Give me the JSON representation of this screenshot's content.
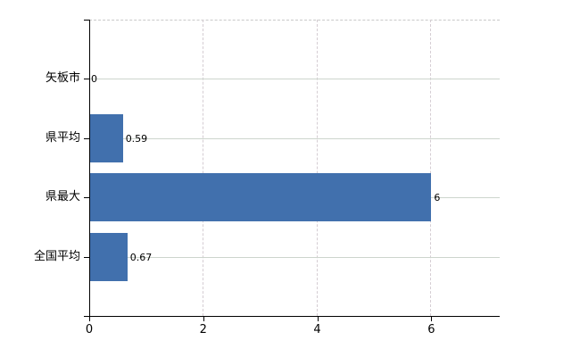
{
  "page": {
    "background": "#ffffff",
    "title": ""
  },
  "chart_data": {
    "type": "bar",
    "orientation": "horizontal",
    "title": "",
    "xlabel": "",
    "ylabel": "",
    "categories": [
      "矢板市",
      "県平均",
      "県最大",
      "全国平均"
    ],
    "values": [
      0,
      0.59,
      6,
      0.67
    ],
    "value_labels": [
      "0",
      "0.59",
      "6",
      "0.67"
    ],
    "x_tick_labels": [
      "0",
      "2",
      "4",
      "6"
    ],
    "x_tick_values": [
      0,
      2,
      4,
      6
    ],
    "xlim": [
      0,
      7.2
    ],
    "grid": true,
    "legend": false,
    "colors": {
      "bar": "#4170ad",
      "axis": "#000000",
      "h_gridline": "#cdd5cd",
      "v_gridline": "#d5cdd3",
      "plot_top_border": "#c9c9c9",
      "label_text": "#000000"
    }
  }
}
